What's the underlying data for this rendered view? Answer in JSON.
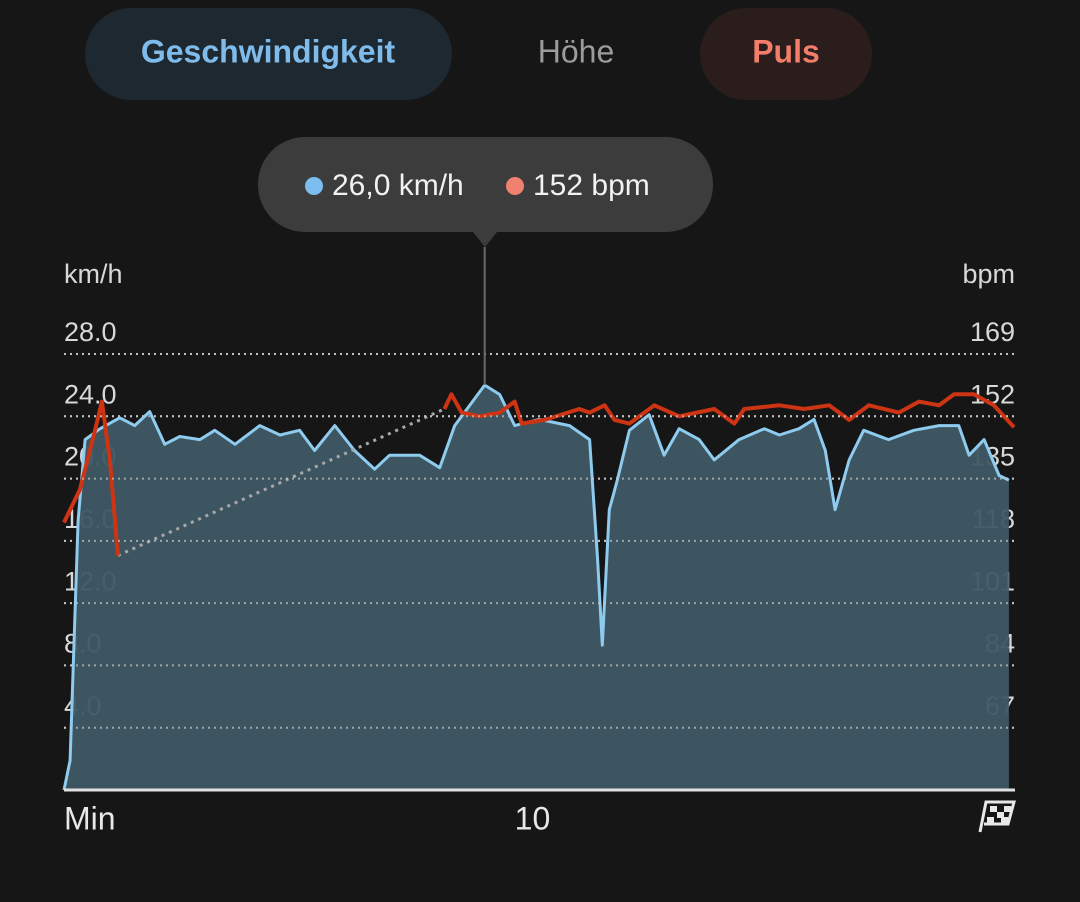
{
  "inactive_tab": "Höhe",
  "chart_data": {
    "type": "line",
    "ylabel": "km/h",
    "y2label": "bpm",
    "xlim": [
      0,
      20.3
    ],
    "xticks": [
      {
        "value": 0,
        "label": "Min"
      },
      10
    ],
    "ylim": [
      0,
      28
    ],
    "yticks": [
      {
        "value": 4,
        "label": "4.0"
      },
      {
        "value": 8,
        "label": "8.0"
      },
      {
        "value": 12,
        "label": "12.0"
      },
      {
        "value": 16,
        "label": "16.0"
      },
      {
        "value": 20,
        "label": "20.0"
      },
      {
        "value": 24,
        "label": "24.0"
      },
      {
        "value": 28,
        "label": "28.0"
      }
    ],
    "y2lim": [
      50,
      169
    ],
    "y2ticks": [
      67,
      84,
      101,
      118,
      135,
      152,
      169
    ],
    "grid": true,
    "tooltip": {
      "x": 8.98,
      "labels": [
        "26,0 km/h",
        "152 bpm"
      ]
    },
    "series": [
      {
        "name": "Geschwindigkeit",
        "color": "#8ecbee",
        "fill": "#3e5964",
        "x": [
          0,
          0.13,
          0.3,
          0.45,
          0.77,
          1.19,
          1.51,
          1.83,
          2.15,
          2.47,
          2.9,
          3.22,
          3.65,
          4.18,
          4.61,
          5.03,
          5.35,
          5.78,
          6.2,
          6.63,
          6.95,
          7.59,
          8.02,
          8.34,
          8.66,
          8.98,
          9.3,
          9.62,
          10.14,
          10.79,
          11.22,
          11.39,
          11.49,
          11.64,
          11.81,
          12.07,
          12.49,
          12.81,
          13.13,
          13.56,
          13.88,
          14.41,
          14.95,
          15.27,
          15.69,
          16.01,
          16.25,
          16.46,
          16.76,
          17.07,
          17.6,
          18.14,
          18.68,
          19.1,
          19.32,
          19.64,
          19.96,
          20.17
        ],
        "values": [
          0,
          1.9,
          17.3,
          22.5,
          23.2,
          23.9,
          23.4,
          24.3,
          22.2,
          22.7,
          22.5,
          23.1,
          22.2,
          23.4,
          22.8,
          23.1,
          21.8,
          23.4,
          21.8,
          20.6,
          21.5,
          21.5,
          20.7,
          23.4,
          24.7,
          26.0,
          25.4,
          23.4,
          23.8,
          23.4,
          22.5,
          14.8,
          9.3,
          18.0,
          19.9,
          23.1,
          24.1,
          21.5,
          23.2,
          22.5,
          21.2,
          22.5,
          23.2,
          22.8,
          23.2,
          23.8,
          21.8,
          18.0,
          21.2,
          23.1,
          22.5,
          23.1,
          23.4,
          23.4,
          21.5,
          22.5,
          20.2,
          19.9
        ]
      },
      {
        "name": "Puls",
        "color": "#cc3414",
        "axis": "y2",
        "x": [
          0,
          0.34,
          0.66,
          0.81,
          0.98,
          1.15,
          4.6,
          8.12,
          8.27,
          8.49,
          8.87,
          9.3,
          9.62,
          9.77,
          10.26,
          11.0,
          11.22,
          11.54,
          11.75,
          12.07,
          12.6,
          13.13,
          13.88,
          14.31,
          14.52,
          15.27,
          15.8,
          16.33,
          16.76,
          17.18,
          17.82,
          18.25,
          18.68,
          19.0,
          19.42,
          19.85,
          20.28
        ],
        "values": [
          123,
          132,
          148,
          156,
          140,
          114,
          null,
          154,
          158,
          153,
          152,
          153,
          156,
          150,
          151,
          154,
          153,
          155,
          151,
          150,
          155,
          152,
          154,
          150,
          154,
          155,
          154,
          155,
          151,
          155,
          153,
          156,
          155,
          158,
          158,
          155,
          149
        ]
      }
    ]
  }
}
